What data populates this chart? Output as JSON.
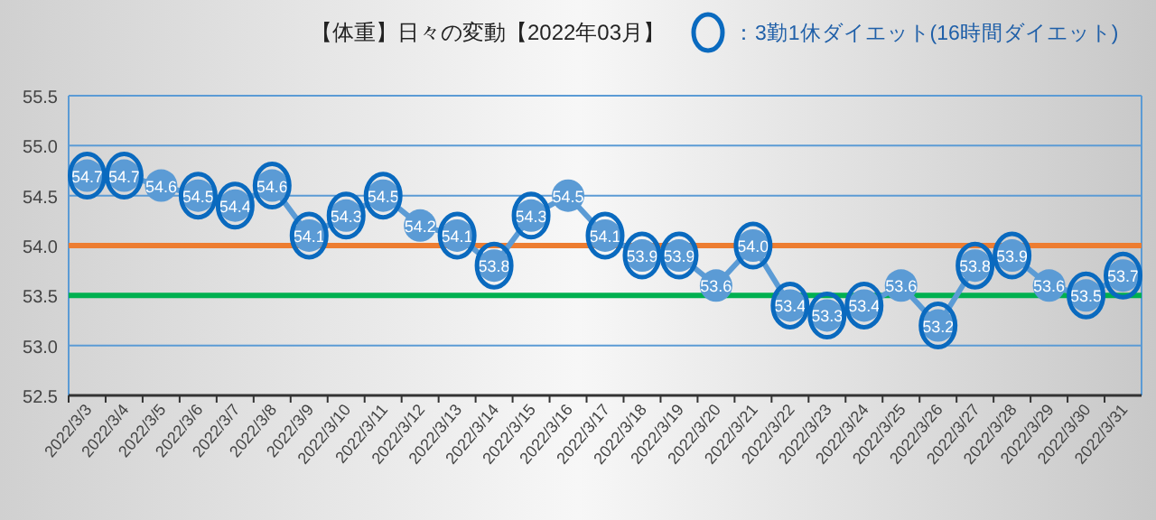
{
  "chart_data": {
    "type": "line",
    "title": "【体重】日々の変動【2022年03月】",
    "categories": [
      "2022/3/3",
      "2022/3/4",
      "2022/3/5",
      "2022/3/6",
      "2022/3/7",
      "2022/3/8",
      "2022/3/9",
      "2022/3/10",
      "2022/3/11",
      "2022/3/12",
      "2022/3/13",
      "2022/3/14",
      "2022/3/15",
      "2022/3/16",
      "2022/3/17",
      "2022/3/18",
      "2022/3/19",
      "2022/3/20",
      "2022/3/21",
      "2022/3/22",
      "2022/3/23",
      "2022/3/24",
      "2022/3/25",
      "2022/3/26",
      "2022/3/27",
      "2022/3/28",
      "2022/3/29",
      "2022/3/30",
      "2022/3/31"
    ],
    "series": [
      {
        "color": "#5b9bd5",
        "marker": "circle",
        "value_labels": [
          "54.7",
          "54.7",
          "54.6",
          "54.5",
          "54.4",
          "54.6",
          "54.1",
          "54.3",
          "54.5",
          "54.2",
          "54.1",
          "53.8",
          "54.3",
          "54.5",
          "54.1",
          "53.9",
          "53.9",
          "53.6",
          "54.0",
          "53.4",
          "53.3",
          "53.4",
          "53.6",
          "53.2",
          "53.8",
          "53.9",
          "53.6",
          "53.5",
          "53.7"
        ],
        "values": [
          54.7,
          54.7,
          54.6,
          54.5,
          54.4,
          54.6,
          54.1,
          54.3,
          54.5,
          54.2,
          54.1,
          53.8,
          54.3,
          54.5,
          54.1,
          53.9,
          53.9,
          53.6,
          54.0,
          53.4,
          53.3,
          53.4,
          53.6,
          53.2,
          53.8,
          53.9,
          53.6,
          53.5,
          53.7
        ]
      },
      {
        "type": "scatter",
        "name": "：3勤1休ダイエット(16時間ダイエット)",
        "color": "#0a6abf",
        "marker": "circle",
        "values": [
          54.7,
          54.7,
          null,
          54.5,
          54.4,
          54.6,
          54.1,
          54.3,
          54.5,
          null,
          54.1,
          53.8,
          54.3,
          null,
          54.1,
          53.9,
          53.9,
          null,
          54.0,
          53.4,
          53.3,
          53.4,
          null,
          53.2,
          53.8,
          53.9,
          null,
          53.5,
          53.7
        ]
      }
    ],
    "ylim": [
      52.5,
      55.5
    ],
    "yticks": [
      52.5,
      {
        "value": 53,
        "label": "53.0"
      },
      53.5,
      {
        "value": 54,
        "label": "54.0"
      },
      54.5,
      {
        "value": 55,
        "label": "55.0"
      },
      55.5
    ],
    "grid": "y",
    "legend": "top right",
    "ref_lines": [
      {
        "axis": "y",
        "value": 54,
        "color": "#ed7d31"
      },
      {
        "axis": "y",
        "value": 53.5,
        "color": "#00b050"
      }
    ]
  }
}
